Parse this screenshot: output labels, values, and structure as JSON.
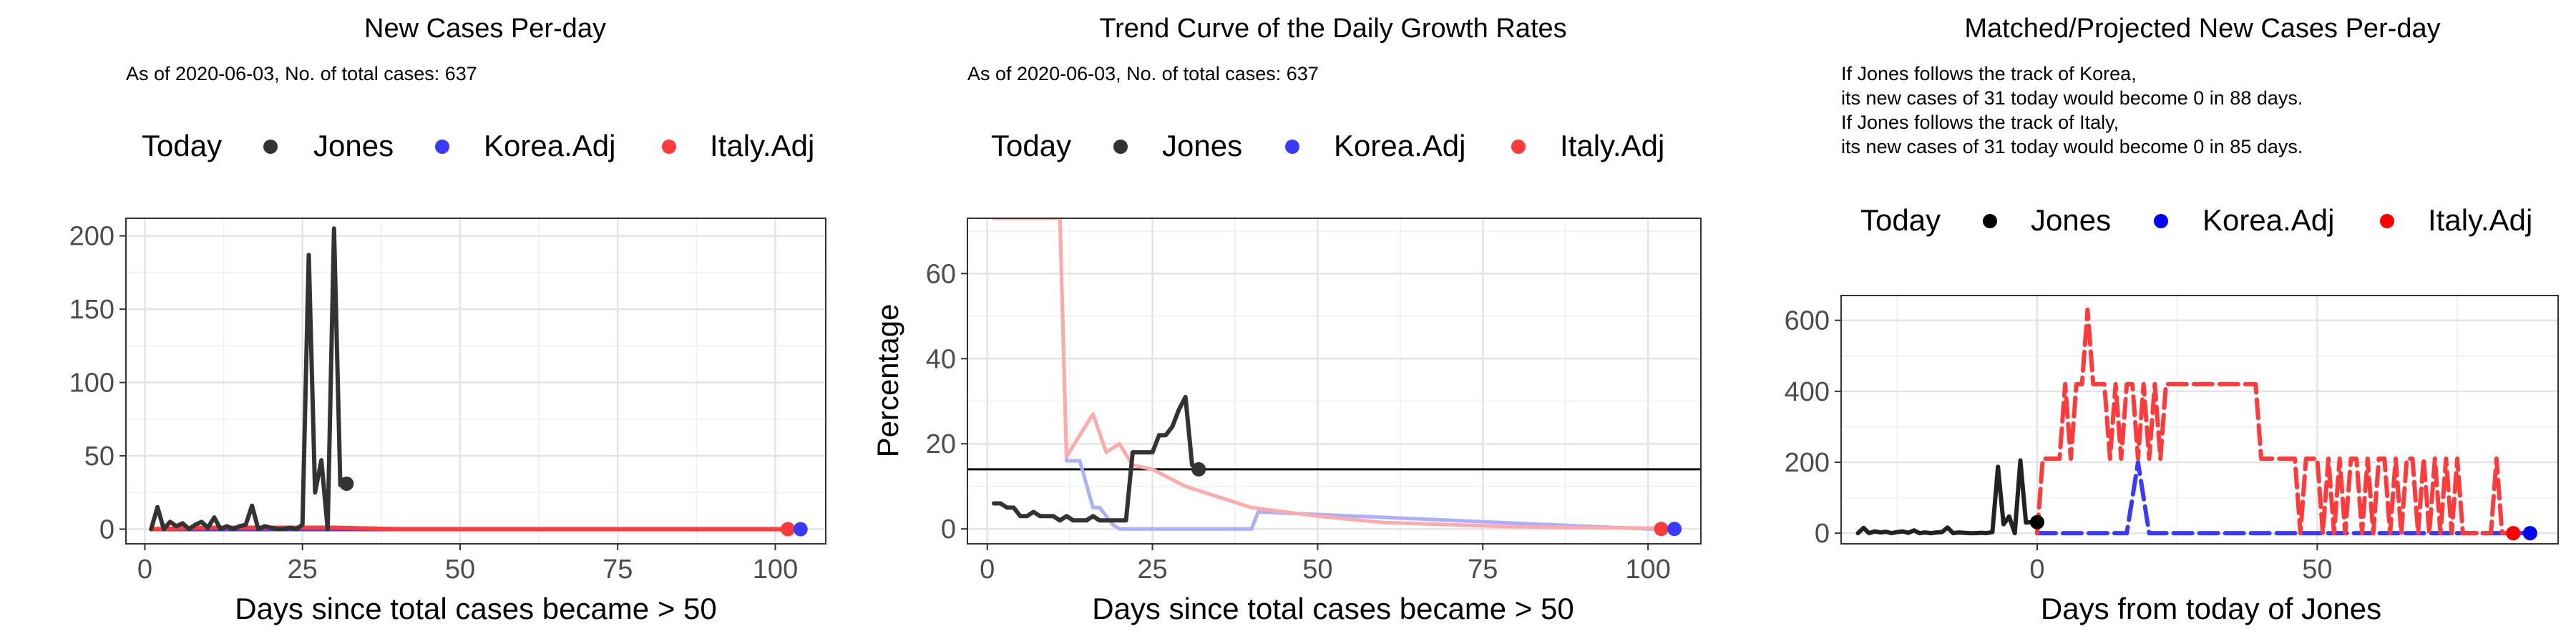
{
  "panels": [
    {
      "title": "New Cases Per-day",
      "subtitle_lines": [
        "As of 2020-06-03, No. of total cases: 637"
      ],
      "legend": {
        "title": "Today",
        "items": [
          {
            "label": "Jones",
            "color": "#333333"
          },
          {
            "label": "Korea.Adj",
            "color": "#3a3aff"
          },
          {
            "label": "Italy.Adj",
            "color": "#ff3a3a"
          }
        ]
      },
      "xlabel": "Days since total cases became > 50",
      "ylabel": "",
      "xticks": [
        "0",
        "25",
        "50",
        "75",
        "100"
      ],
      "yticks": [
        "0",
        "50",
        "100",
        "150",
        "200"
      ]
    },
    {
      "title": "Trend Curve of the Daily Growth Rates",
      "subtitle_lines": [
        "As of 2020-06-03, No. of total cases: 637"
      ],
      "legend": {
        "title": "Today",
        "items": [
          {
            "label": "Jones",
            "color": "#333333"
          },
          {
            "label": "Korea.Adj",
            "color": "#3a3aff"
          },
          {
            "label": "Italy.Adj",
            "color": "#ff3a3a"
          }
        ]
      },
      "xlabel": "Days since total cases became > 50",
      "ylabel": "Percentage",
      "xticks": [
        "0",
        "25",
        "50",
        "75",
        "100"
      ],
      "yticks": [
        "0",
        "20",
        "40",
        "60"
      ]
    },
    {
      "title": "Matched/Projected New Cases Per-day",
      "subtitle_lines": [
        "If Jones follows the track of Korea,",
        "its new cases of 31 today would become 0 in 88 days.",
        "If Jones follows the track of Italy,",
        "its new cases of 31 today would become 0 in 85 days."
      ],
      "legend": {
        "title": "Today",
        "items": [
          {
            "label": "Jones",
            "color": "#000000"
          },
          {
            "label": "Korea.Adj",
            "color": "#0000ff"
          },
          {
            "label": "Italy.Adj",
            "color": "#ff0000"
          }
        ]
      },
      "xlabel": "Days from today of Jones",
      "ylabel": "",
      "xticks": [
        "0",
        "50"
      ],
      "yticks": [
        "0",
        "200",
        "400",
        "600"
      ]
    }
  ],
  "chart_data": [
    {
      "type": "line",
      "title": "New Cases Per-day",
      "xlabel": "Days since total cases became > 50",
      "ylabel": "",
      "xlim": [
        -3,
        108
      ],
      "ylim": [
        -10,
        212
      ],
      "grid": true,
      "legend_position": "top",
      "series": [
        {
          "name": "Jones",
          "color": "#333333",
          "x": [
            1,
            2,
            3,
            4,
            5,
            6,
            7,
            8,
            9,
            10,
            11,
            12,
            13,
            14,
            15,
            16,
            17,
            18,
            19,
            20,
            21,
            22,
            23,
            24,
            25,
            26,
            27,
            28,
            29,
            30,
            31,
            32
          ],
          "y": [
            0,
            15,
            0,
            5,
            2,
            4,
            0,
            3,
            5,
            1,
            8,
            0,
            2,
            0,
            2,
            3,
            16,
            0,
            2,
            1,
            0,
            0,
            1,
            0,
            3,
            187,
            25,
            47,
            0,
            205,
            30,
            31
          ]
        },
        {
          "name": "Korea.Adj",
          "color": "#3a3aff",
          "x": [
            1,
            10,
            20,
            30,
            40,
            50,
            60,
            70,
            80,
            90,
            100,
            104
          ],
          "y": [
            0,
            0,
            0,
            0,
            0,
            0,
            0,
            0,
            0,
            0,
            0,
            0
          ]
        },
        {
          "name": "Italy.Adj",
          "color": "#ff3a3a",
          "x": [
            1,
            10,
            20,
            30,
            40,
            50,
            60,
            70,
            80,
            90,
            100,
            102
          ],
          "y": [
            0,
            1,
            1,
            1,
            0,
            0,
            0,
            0,
            0,
            0,
            0,
            0
          ]
        }
      ],
      "today_points": [
        {
          "series": "Jones",
          "x": 32,
          "y": 31
        },
        {
          "series": "Italy.Adj",
          "x": 102,
          "y": 0
        },
        {
          "series": "Korea.Adj",
          "x": 104,
          "y": 0
        }
      ]
    },
    {
      "type": "line",
      "title": "Trend Curve of the Daily Growth Rates",
      "xlabel": "Days since total cases became > 50",
      "ylabel": "Percentage",
      "xlim": [
        -3,
        108
      ],
      "ylim": [
        -3.5,
        73
      ],
      "grid": true,
      "legend_position": "top",
      "hline": 14,
      "series": [
        {
          "name": "Jones",
          "color": "#333333",
          "x": [
            1,
            2,
            3,
            4,
            5,
            6,
            7,
            8,
            9,
            10,
            11,
            12,
            13,
            14,
            15,
            16,
            17,
            18,
            19,
            20,
            21,
            22,
            23,
            24,
            25,
            26,
            27,
            28,
            29,
            30,
            31,
            32
          ],
          "y": [
            6,
            6,
            5,
            5,
            3,
            3,
            4,
            3,
            3,
            3,
            2,
            3,
            2,
            2,
            2,
            3,
            2,
            2,
            2,
            2,
            2,
            18,
            18,
            18,
            18,
            22,
            22,
            24,
            28,
            31,
            15,
            14
          ]
        },
        {
          "name": "Korea.Adj",
          "color": "#aab0ff",
          "x": [
            1,
            11,
            12,
            14,
            16,
            17,
            19,
            20,
            21,
            40,
            41,
            100,
            104
          ],
          "y": [
            73,
            73,
            16,
            16,
            5,
            5,
            1,
            0,
            0,
            0,
            4,
            0,
            0
          ]
        },
        {
          "name": "Italy.Adj",
          "color": "#ffaaaa",
          "x": [
            1,
            11,
            12,
            14,
            16,
            18,
            20,
            22,
            25,
            30,
            40,
            50,
            60,
            70,
            80,
            90,
            100,
            102
          ],
          "y": [
            73,
            73,
            17,
            22,
            27,
            18,
            20,
            15,
            14,
            10,
            5,
            3,
            1.5,
            1,
            0.5,
            0.3,
            0.2,
            0.2
          ]
        }
      ],
      "today_points": [
        {
          "series": "Jones",
          "x": 32,
          "y": 14
        },
        {
          "series": "Italy.Adj",
          "x": 102,
          "y": 0
        },
        {
          "series": "Korea.Adj",
          "x": 104,
          "y": 0
        }
      ]
    },
    {
      "type": "line",
      "title": "Matched/Projected New Cases Per-day",
      "xlabel": "Days from today of Jones",
      "ylabel": "",
      "xlim": [
        -35,
        93
      ],
      "ylim": [
        -30,
        670
      ],
      "grid": true,
      "legend_position": "top",
      "series": [
        {
          "name": "Jones",
          "color": "#222222",
          "x": [
            -32,
            -31,
            -30,
            -29,
            -28,
            -27,
            -26,
            -25,
            -24,
            -23,
            -22,
            -21,
            -20,
            -19,
            -18,
            -17,
            -16,
            -15,
            -14,
            -13,
            -12,
            -11,
            -10,
            -9,
            -8,
            -7,
            -6,
            -5,
            -4,
            -3,
            -2,
            -1,
            0
          ],
          "y": [
            0,
            15,
            0,
            5,
            2,
            4,
            0,
            3,
            5,
            1,
            8,
            0,
            2,
            0,
            2,
            3,
            16,
            0,
            2,
            1,
            0,
            0,
            1,
            0,
            3,
            187,
            25,
            47,
            0,
            205,
            30,
            31,
            31
          ]
        },
        {
          "name": "Korea.Adj",
          "color": "#3a3aff",
          "x": [
            0,
            15,
            16,
            17,
            18,
            19,
            20,
            30,
            50,
            70,
            85,
            88
          ],
          "y": [
            0,
            0,
            0,
            100,
            200,
            100,
            0,
            0,
            0,
            0,
            0,
            0
          ]
        },
        {
          "name": "Italy.Adj",
          "color": "#ff3a3a",
          "x": [
            0,
            1,
            3,
            4,
            5,
            6,
            7,
            8,
            9,
            10,
            11,
            12,
            13,
            14,
            15,
            16,
            17,
            18,
            19,
            20,
            21,
            22,
            23,
            24,
            25,
            26,
            27,
            28,
            29,
            30,
            31,
            32,
            33,
            34,
            35,
            36,
            37,
            38,
            39,
            40,
            41,
            42,
            43,
            44,
            45,
            46,
            47,
            48,
            49,
            50,
            51,
            52,
            53,
            54,
            55,
            56,
            57,
            58,
            59,
            60,
            61,
            62,
            63,
            64,
            65,
            66,
            67,
            68,
            69,
            70,
            71,
            72,
            73,
            74,
            75,
            76,
            77,
            78,
            79,
            80,
            81,
            82,
            83,
            84,
            85
          ],
          "y": [
            0,
            210,
            210,
            210,
            420,
            210,
            420,
            420,
            630,
            420,
            420,
            420,
            210,
            420,
            210,
            420,
            420,
            210,
            420,
            210,
            420,
            210,
            420,
            420,
            420,
            420,
            420,
            420,
            420,
            420,
            420,
            420,
            420,
            420,
            420,
            420,
            420,
            420,
            420,
            210,
            210,
            210,
            210,
            210,
            210,
            210,
            0,
            210,
            210,
            210,
            0,
            210,
            0,
            210,
            0,
            210,
            210,
            0,
            210,
            0,
            210,
            210,
            0,
            210,
            0,
            210,
            210,
            0,
            210,
            0,
            210,
            0,
            210,
            0,
            210,
            0,
            0,
            0,
            0,
            0,
            0,
            210,
            0,
            0,
            0
          ]
        }
      ],
      "today_points": [
        {
          "series": "Jones",
          "x": 0,
          "y": 31
        },
        {
          "series": "Italy.Adj",
          "x": 85,
          "y": 0
        },
        {
          "series": "Korea.Adj",
          "x": 88,
          "y": 0
        }
      ]
    }
  ]
}
